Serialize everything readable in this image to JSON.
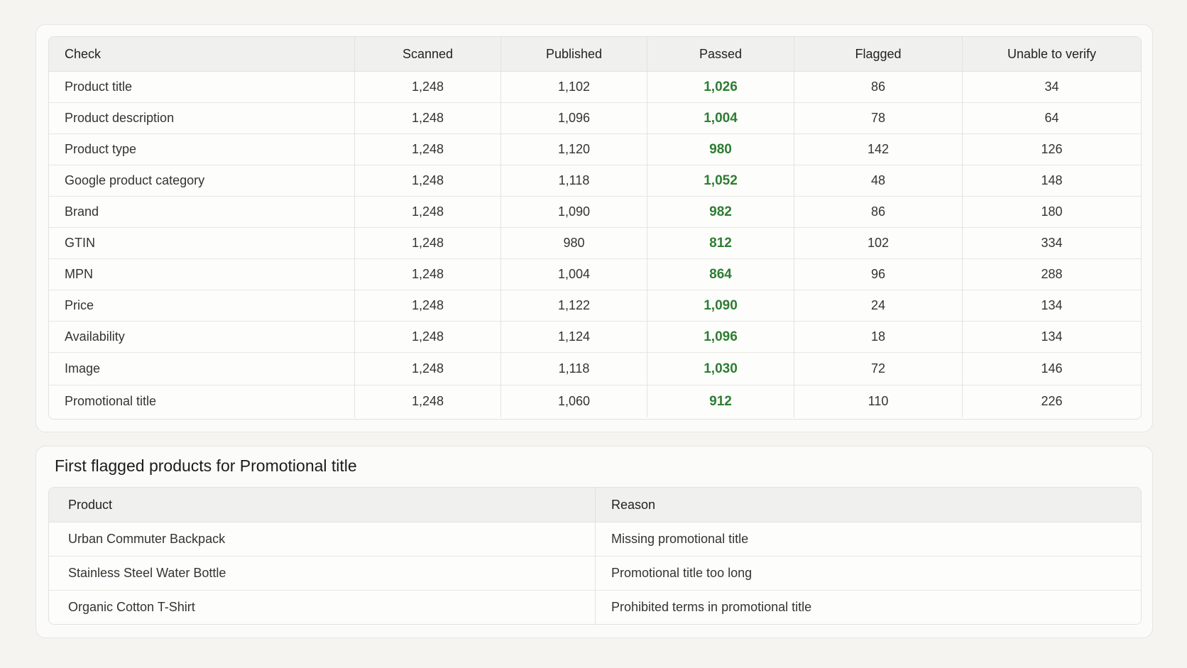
{
  "summary": {
    "headers": [
      "Check",
      "Scanned",
      "Published",
      "Passed",
      "Flagged",
      "Unable to verify"
    ],
    "rows": [
      {
        "check": "Product title",
        "scanned": "1,248",
        "published": "1,102",
        "passed": "1,026",
        "flagged": "86",
        "unable": "34"
      },
      {
        "check": "Product description",
        "scanned": "1,248",
        "published": "1,096",
        "passed": "1,004",
        "flagged": "78",
        "unable": "64"
      },
      {
        "check": "Product type",
        "scanned": "1,248",
        "published": "1,120",
        "passed": "980",
        "flagged": "142",
        "unable": "126"
      },
      {
        "check": "Google product category",
        "scanned": "1,248",
        "published": "1,118",
        "passed": "1,052",
        "flagged": "48",
        "unable": "148"
      },
      {
        "check": "Brand",
        "scanned": "1,248",
        "published": "1,090",
        "passed": "982",
        "flagged": "86",
        "unable": "180"
      },
      {
        "check": "GTIN",
        "scanned": "1,248",
        "published": "980",
        "passed": "812",
        "flagged": "102",
        "unable": "334"
      },
      {
        "check": "MPN",
        "scanned": "1,248",
        "published": "1,004",
        "passed": "864",
        "flagged": "96",
        "unable": "288"
      },
      {
        "check": "Price",
        "scanned": "1,248",
        "published": "1,122",
        "passed": "1,090",
        "flagged": "24",
        "unable": "134"
      },
      {
        "check": "Availability",
        "scanned": "1,248",
        "published": "1,124",
        "passed": "1,096",
        "flagged": "18",
        "unable": "134"
      },
      {
        "check": "Image",
        "scanned": "1,248",
        "published": "1,118",
        "passed": "1,030",
        "flagged": "72",
        "unable": "146"
      },
      {
        "check": "Promotional title",
        "scanned": "1,248",
        "published": "1,060",
        "passed": "912",
        "flagged": "110",
        "unable": "226"
      }
    ]
  },
  "flagged": {
    "title": "First flagged products for Promotional title",
    "headers": [
      "Product",
      "Reason"
    ],
    "rows": [
      {
        "product": "Urban Commuter Backpack",
        "reason": "Missing promotional title"
      },
      {
        "product": "Stainless Steel Water Bottle",
        "reason": "Promotional title too long"
      },
      {
        "product": "Organic Cotton T-Shirt",
        "reason": "Prohibited terms in promotional title"
      }
    ]
  },
  "colors": {
    "passed": "#2e7d32",
    "background": "#f5f4f0",
    "card": "#fbfbfa"
  }
}
